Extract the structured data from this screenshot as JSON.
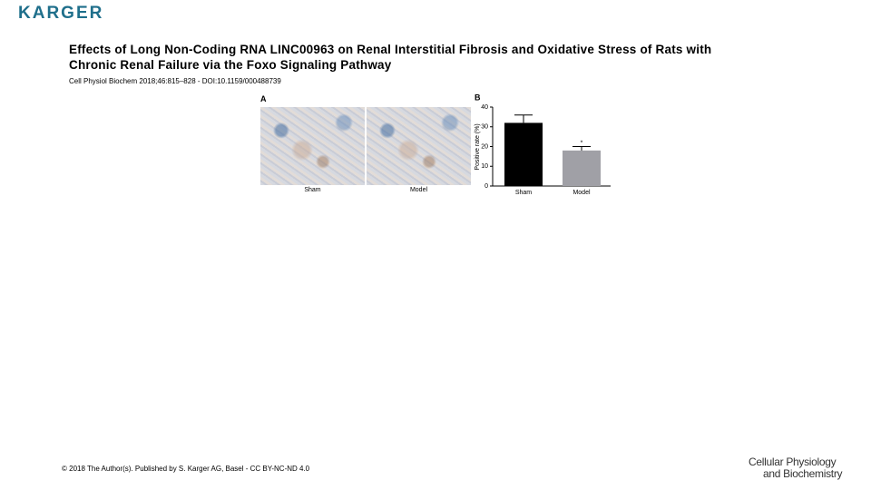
{
  "header": {
    "logo": "KARGER"
  },
  "title": [
    "Effects of Long Non-Coding RNA LINC00963 on Renal Interstitial Fibrosis and Oxidative Stress of Rats with",
    "Chronic Renal Failure via the Foxo Signaling Pathway"
  ],
  "citation": "Cell Physiol Biochem 2018;46:815–828 - DOI:10.1159/000488739",
  "figure": {
    "panel_a": {
      "label": "A",
      "images": [
        "Sham",
        "Model"
      ]
    },
    "chart_data": {
      "type": "bar",
      "panel_label": "B",
      "y_label": "Positive rate (%)",
      "categories": [
        "Sham",
        "Model"
      ],
      "values": [
        32,
        18
      ],
      "errors": [
        4,
        2
      ],
      "colors": [
        "#000000",
        "#a0a0a6"
      ],
      "ylim": [
        0,
        40
      ],
      "yticks": [
        0,
        10,
        20,
        30,
        40
      ],
      "annotations": [
        {
          "text": "*",
          "category": "Model"
        }
      ]
    }
  },
  "footer": {
    "copyright": "© 2018 The Author(s). Published by S. Karger AG, Basel - CC BY-NC-ND 4.0",
    "journal": [
      "Cellular Physiology",
      "and Biochemistry"
    ]
  }
}
